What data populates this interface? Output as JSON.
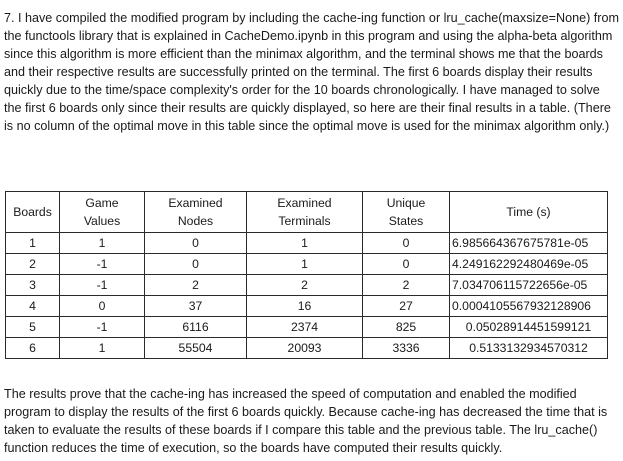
{
  "intro": "7. I have compiled the modified program by including the cache-ing function or lru_cache(maxsize=None) from the functools library that is explained in CacheDemo.ipynb in this program and using the alpha-beta algorithm since this algorithm is more efficient than the minimax algorithm, and the terminal shows me that the boards and their respective results are successfully printed on the terminal. The first 6 boards display their results quickly due to the time/space complexity's order for the 10 boards chronologically. I have managed to solve the first 6 boards only since their results are quickly displayed, so here are their final results in a table. (There is no column of the optimal move in this table since the optimal move is used for the minimax algorithm only.)",
  "table": {
    "headers": [
      "Boards",
      "Game\nValues",
      "Examined\nNodes",
      "Examined\nTerminals",
      "Unique\nStates",
      "Time (s)"
    ],
    "rows": [
      [
        "1",
        "1",
        "0",
        "1",
        "0",
        "6.985664367675781e-05"
      ],
      [
        "2",
        "-1",
        "0",
        "1",
        "0",
        "4.249162292480469e-05"
      ],
      [
        "3",
        "-1",
        "2",
        "2",
        "2",
        "7.034706115722656e-05"
      ],
      [
        "4",
        "0",
        "37",
        "16",
        "27",
        "0.0004105567932128906"
      ],
      [
        "5",
        "-1",
        "6116",
        "2374",
        "825",
        "0.05028914451599121"
      ],
      [
        "6",
        "1",
        "55504",
        "20093",
        "3336",
        "0.5133132934570312"
      ]
    ]
  },
  "conclusion": "The results prove that the cache-ing has increased the speed of computation and enabled the modified program to display the results of the first 6 boards quickly. Because cache-ing has decreased the time that is taken to evaluate the results of these boards if I compare this table and the previous table. The lru_cache() function reduces the time of execution, so the boards have computed their results quickly."
}
